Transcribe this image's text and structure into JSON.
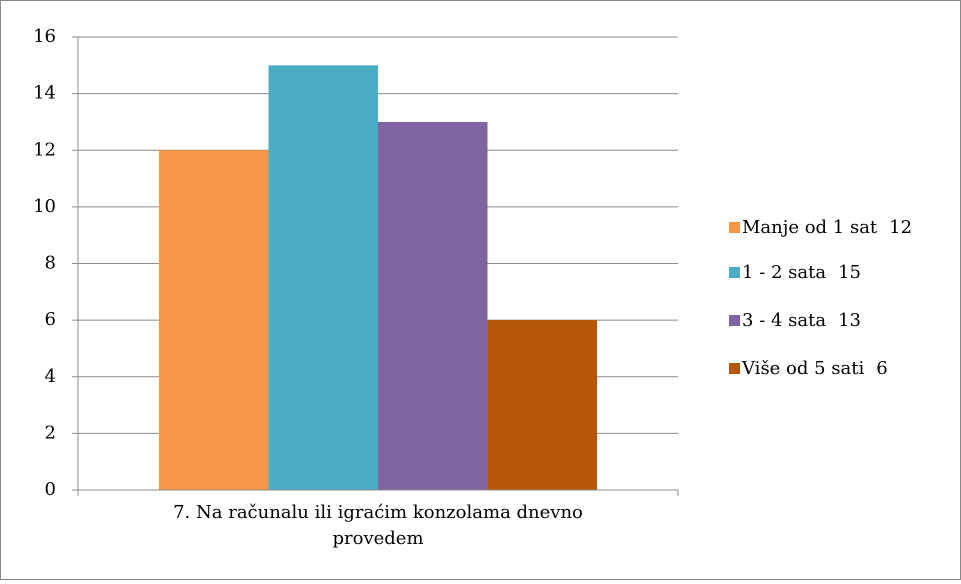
{
  "chart_data": {
    "type": "bar",
    "categories": [
      "7. Na računalu ili igraćim konzolama dnevno provedem"
    ],
    "series": [
      {
        "name": "Manje od 1 sat",
        "color": "#f79646",
        "values": [
          12
        ]
      },
      {
        "name": "1 - 2 sata",
        "color": "#4bacc6",
        "values": [
          15
        ]
      },
      {
        "name": "3 - 4 sata",
        "color": "#8064a2",
        "values": [
          13
        ]
      },
      {
        "name": "Više od 5 sati",
        "color": "#b65708",
        "values": [
          6
        ]
      }
    ],
    "ylim": [
      0,
      16
    ],
    "yticks": [
      0,
      2,
      4,
      6,
      8,
      10,
      12,
      14,
      16
    ],
    "grid": true,
    "legend": "right"
  }
}
